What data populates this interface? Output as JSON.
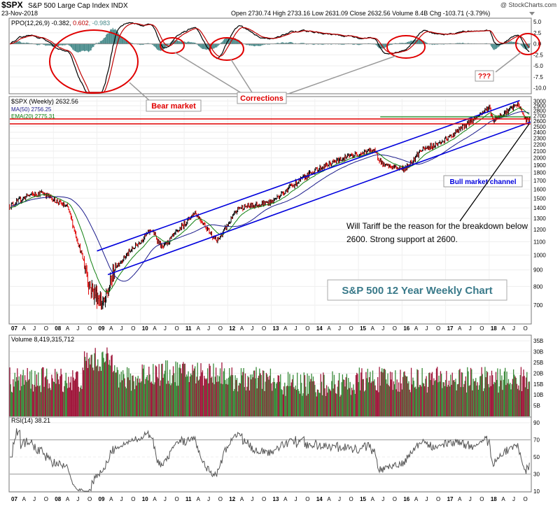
{
  "header": {
    "symbol": "$SPX",
    "name": "S&P 500 Large Cap Index  INDX",
    "date": "23-Nov-2018",
    "watermark": "@ StockCharts.com",
    "quote": "Open 2730.74  High 2733.16  Low 2631.09  Close 2632.56  Volume 8.4B  Chg -103.71 (-3.79%)"
  },
  "panels": {
    "ppo": {
      "legend": "PPO(12,26,9) -0.382, ",
      "signal": "0.602",
      "hist": ", -0.983",
      "ticks": [
        "5.0",
        "2.5",
        "0.0",
        "-2.5",
        "-5.0",
        "-7.5",
        "-10.0"
      ]
    },
    "price": {
      "legend_sym": "$SPX (Weekly) 2632.56",
      "legend_ma": "MA(50) 2756.25",
      "legend_ema": "EMA(20) 2775.31",
      "ticks": [
        "3000",
        "2900",
        "2800",
        "2700",
        "2600",
        "2500",
        "2400",
        "2300",
        "2200",
        "2100",
        "2000",
        "1900",
        "1800",
        "1700",
        "1600",
        "1500",
        "1400",
        "1300",
        "1200",
        "1100",
        "1000",
        "900",
        "800",
        "700"
      ]
    },
    "volume": {
      "legend": "Volume 8,419,315,712",
      "ticks": [
        "35B",
        "30B",
        "25B",
        "20B",
        "15B",
        "10B",
        "5B"
      ]
    },
    "rsi": {
      "legend": "RSI(14) 38.21",
      "ticks": [
        "90",
        "70",
        "50",
        "30",
        "10"
      ]
    }
  },
  "annotations": {
    "bear": "Bear market",
    "corrections": "Corrections",
    "question": "???",
    "bull": "Bull market channel",
    "note_line1": "Will Tariff be the reason for the breakdown below",
    "note_line2": "2600. Strong support at 2600.",
    "title_box": "S&P 500 12 Year Weekly Chart"
  },
  "x_axis": [
    "07",
    "A",
    "J",
    "O",
    "08",
    "A",
    "J",
    "O",
    "09",
    "A",
    "J",
    "O",
    "10",
    "A",
    "J",
    "O",
    "11",
    "A",
    "J",
    "O",
    "12",
    "A",
    "J",
    "O",
    "13",
    "A",
    "J",
    "O",
    "14",
    "A",
    "J",
    "O",
    "15",
    "A",
    "J",
    "O",
    "16",
    "A",
    "J",
    "O",
    "17",
    "A",
    "J",
    "O",
    "18",
    "A",
    "J",
    "O"
  ],
  "colors": {
    "price_bar_up": "#000000",
    "price_bar_down": "#e00000",
    "ma50": "#1c1c8c",
    "ema20": "#108010",
    "channel": "#0000dd",
    "support": "#e00000",
    "annot": "#e00000",
    "vol_up": "#3a8a3a",
    "vol_down": "#a0183c"
  },
  "chart_data": {
    "type": "line",
    "title": "S&P 500 12 Year Weekly Chart",
    "scale": "log",
    "ylim": [
      650,
      3050
    ],
    "x": [
      "2007-01",
      "2007-06",
      "2007-10",
      "2008-05",
      "2008-10",
      "2008-11",
      "2009-03",
      "2009-06",
      "2010-04",
      "2010-07",
      "2011-04",
      "2011-10",
      "2012-04",
      "2013-01",
      "2013-06",
      "2014-01",
      "2014-09",
      "2015-05",
      "2015-08",
      "2016-02",
      "2016-06",
      "2017-01",
      "2018-01",
      "2018-02",
      "2018-09",
      "2018-11"
    ],
    "series": [
      {
        "name": "$SPX (Weekly)",
        "values": [
          1420,
          1530,
          1560,
          1400,
          900,
          800,
          700,
          920,
          1200,
          1050,
          1360,
          1100,
          1400,
          1460,
          1620,
          1830,
          2000,
          2120,
          1890,
          1850,
          2100,
          2270,
          2870,
          2620,
          2930,
          2630
        ]
      }
    ],
    "support_level": 2600,
    "volume_ylim": [
      0,
      37
    ],
    "rsi_ylim": [
      10,
      95
    ],
    "ppo_ylim": [
      -11,
      5.5
    ]
  }
}
